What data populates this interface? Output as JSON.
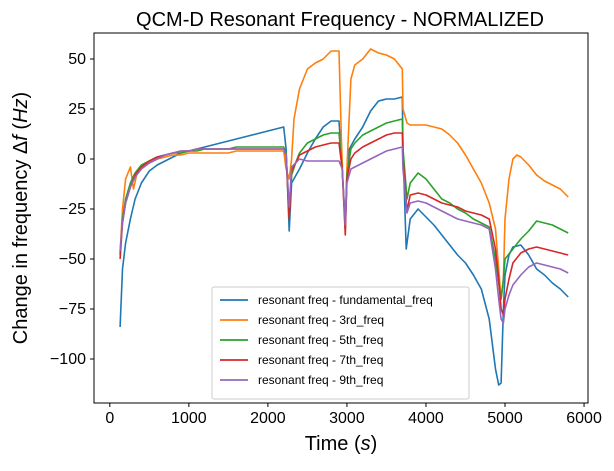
{
  "chart_data": {
    "type": "line",
    "title": "QCM-D Resonant Frequency - NORMALIZED",
    "xlabel_text": "Time (",
    "xlabel_var": "s",
    "xlabel_close": ")",
    "ylabel_text": "Change in frequency Δ",
    "ylabel_var": "f",
    "ylabel_open": " (",
    "ylabel_unit": "Hz",
    "ylabel_close": ")",
    "xlim": [
      -200,
      6050
    ],
    "ylim": [
      -122,
      63
    ],
    "xticks": [
      0,
      1000,
      2000,
      3000,
      4000,
      5000,
      6000
    ],
    "yticks": [
      50,
      25,
      0,
      -25,
      -50,
      -75,
      -100
    ],
    "legend_position": "lower center",
    "series": [
      {
        "name": "resonant freq - fundamental_freq",
        "color": "#1f77b4",
        "x": [
          130,
          160,
          200,
          260,
          320,
          400,
          500,
          600,
          700,
          800,
          900,
          1000,
          1100,
          1200,
          1300,
          1400,
          1500,
          1600,
          1700,
          1800,
          1900,
          2000,
          2100,
          2200,
          2230,
          2270,
          2300,
          2400,
          2500,
          2600,
          2700,
          2800,
          2900,
          2940,
          2980,
          3000,
          3030,
          3100,
          3200,
          3300,
          3400,
          3500,
          3600,
          3700,
          3710,
          3750,
          3800,
          3900,
          4000,
          4100,
          4200,
          4300,
          4400,
          4500,
          4600,
          4700,
          4800,
          4880,
          4920,
          4950,
          4980,
          5000,
          5050,
          5100,
          5200,
          5300,
          5400,
          5500,
          5600,
          5700,
          5800
        ],
        "y": [
          -84,
          -55,
          -42,
          -30,
          -20,
          -12,
          -6,
          -3,
          -1,
          1,
          3,
          4,
          5,
          6,
          7,
          8,
          9,
          10,
          11,
          12,
          13,
          14,
          15,
          16,
          5,
          -36,
          -12,
          -5,
          3,
          10,
          16,
          19,
          19,
          -5,
          -33,
          -8,
          5,
          10,
          16,
          24,
          29,
          30,
          30,
          31,
          5,
          -45,
          -30,
          -25,
          -29,
          -33,
          -38,
          -43,
          -48,
          -52,
          -58,
          -65,
          -80,
          -105,
          -113,
          -112,
          -75,
          -58,
          -48,
          -44,
          -43,
          -48,
          -55,
          -58,
          -62,
          -65,
          -69
        ]
      },
      {
        "name": "resonant freq - 3rd_freq",
        "color": "#ff7f0e",
        "x": [
          130,
          160,
          200,
          260,
          300,
          350,
          400,
          500,
          600,
          700,
          800,
          900,
          1000,
          1100,
          1200,
          1300,
          1400,
          1500,
          1600,
          1700,
          1800,
          1900,
          2000,
          2100,
          2200,
          2230,
          2270,
          2300,
          2330,
          2400,
          2500,
          2600,
          2700,
          2800,
          2900,
          2930,
          2950,
          2980,
          3000,
          3050,
          3100,
          3200,
          3300,
          3400,
          3500,
          3600,
          3700,
          3710,
          3760,
          3800,
          3900,
          4000,
          4100,
          4200,
          4300,
          4400,
          4500,
          4600,
          4700,
          4800,
          4880,
          4920,
          4950,
          4980,
          5000,
          5050,
          5100,
          5150,
          5200,
          5300,
          5400,
          5500,
          5600,
          5700,
          5800
        ],
        "y": [
          -47,
          -25,
          -10,
          -4,
          -15,
          -6,
          -4,
          -2,
          0,
          1,
          2,
          2,
          3,
          3,
          3,
          3,
          3,
          3,
          4,
          4,
          4,
          4,
          4,
          4,
          4,
          -5,
          -10,
          0,
          20,
          35,
          45,
          48,
          50,
          54,
          54,
          10,
          -12,
          -33,
          -5,
          40,
          47,
          50,
          55,
          53,
          52,
          50,
          45,
          25,
          18,
          17,
          17,
          17,
          16,
          15,
          12,
          8,
          2,
          -5,
          -12,
          -22,
          -35,
          -55,
          -70,
          -60,
          -30,
          -10,
          0,
          2,
          1,
          -3,
          -8,
          -11,
          -13,
          -15,
          -19
        ]
      },
      {
        "name": "resonant freq - 5th_freq",
        "color": "#2ca02c",
        "x": [
          130,
          160,
          200,
          260,
          320,
          400,
          500,
          600,
          700,
          800,
          900,
          1000,
          1100,
          1200,
          1300,
          1400,
          1500,
          1600,
          1700,
          1800,
          1900,
          2000,
          2100,
          2200,
          2230,
          2270,
          2300,
          2350,
          2400,
          2500,
          2600,
          2700,
          2800,
          2900,
          2940,
          2980,
          3000,
          3050,
          3100,
          3200,
          3300,
          3400,
          3500,
          3600,
          3700,
          3710,
          3760,
          3800,
          3900,
          4000,
          4100,
          4200,
          4300,
          4400,
          4500,
          4600,
          4700,
          4800,
          4880,
          4920,
          4950,
          4980,
          5000,
          5100,
          5200,
          5300,
          5400,
          5500,
          5600,
          5700,
          5800
        ],
        "y": [
          -48,
          -30,
          -20,
          -12,
          -7,
          -3,
          -1,
          1,
          2,
          3,
          3,
          4,
          4,
          5,
          5,
          5,
          5,
          6,
          6,
          6,
          6,
          6,
          6,
          6,
          3,
          -30,
          -8,
          -2,
          3,
          8,
          10,
          12,
          13,
          13,
          -5,
          -35,
          -8,
          5,
          8,
          12,
          14,
          16,
          18,
          19,
          20,
          5,
          -20,
          -12,
          -7,
          -10,
          -15,
          -20,
          -22,
          -25,
          -27,
          -30,
          -32,
          -34,
          -50,
          -62,
          -70,
          -60,
          -50,
          -45,
          -40,
          -36,
          -31,
          -32,
          -33,
          -35,
          -37
        ]
      },
      {
        "name": "resonant freq - 7th_freq",
        "color": "#d62728",
        "x": [
          130,
          160,
          200,
          260,
          320,
          400,
          500,
          600,
          700,
          800,
          900,
          1000,
          1100,
          1200,
          1300,
          1400,
          1500,
          1600,
          1700,
          1800,
          1900,
          2000,
          2100,
          2200,
          2230,
          2270,
          2300,
          2350,
          2400,
          2500,
          2600,
          2700,
          2800,
          2900,
          2940,
          2980,
          3000,
          3050,
          3100,
          3200,
          3300,
          3400,
          3500,
          3600,
          3700,
          3710,
          3760,
          3800,
          3900,
          4000,
          4100,
          4200,
          4300,
          4400,
          4500,
          4600,
          4700,
          4800,
          4880,
          4920,
          4950,
          4980,
          5000,
          5050,
          5100,
          5200,
          5300,
          5400,
          5500,
          5600,
          5700,
          5800
        ],
        "y": [
          -50,
          -32,
          -22,
          -14,
          -8,
          -4,
          -1,
          1,
          2,
          3,
          4,
          4,
          5,
          5,
          5,
          5,
          5,
          5,
          5,
          5,
          5,
          5,
          5,
          5,
          2,
          -30,
          -6,
          -2,
          2,
          4,
          6,
          7,
          8,
          8,
          -5,
          -38,
          -10,
          0,
          3,
          6,
          8,
          10,
          12,
          13,
          13,
          0,
          -26,
          -18,
          -17,
          -18,
          -20,
          -22,
          -23,
          -24,
          -26,
          -27,
          -28,
          -30,
          -45,
          -60,
          -75,
          -78,
          -70,
          -60,
          -52,
          -47,
          -45,
          -44,
          -45,
          -46,
          -47,
          -48
        ]
      },
      {
        "name": "resonant freq - 9th_freq",
        "color": "#9467bd",
        "x": [
          130,
          160,
          200,
          260,
          320,
          400,
          500,
          600,
          700,
          800,
          900,
          1000,
          1100,
          1200,
          1300,
          1400,
          1500,
          1600,
          1700,
          1800,
          1900,
          2000,
          2100,
          2200,
          2230,
          2270,
          2300,
          2350,
          2400,
          2500,
          2600,
          2700,
          2800,
          2900,
          2940,
          2980,
          3000,
          3050,
          3100,
          3200,
          3300,
          3400,
          3500,
          3600,
          3700,
          3710,
          3760,
          3800,
          3900,
          4000,
          4100,
          4200,
          4300,
          4400,
          4500,
          4600,
          4700,
          4800,
          4880,
          4920,
          4950,
          4980,
          5000,
          5050,
          5100,
          5200,
          5300,
          5400,
          5500,
          5600,
          5700,
          5800
        ],
        "y": [
          -46,
          -32,
          -22,
          -14,
          -9,
          -5,
          -2,
          0,
          2,
          3,
          4,
          4,
          5,
          5,
          5,
          5,
          5,
          5,
          5,
          5,
          5,
          5,
          5,
          5,
          2,
          -24,
          -4,
          -2,
          0,
          -1,
          -1,
          -1,
          -1,
          -1,
          -5,
          -33,
          -12,
          -5,
          -4,
          -2,
          0,
          2,
          4,
          5,
          6,
          -5,
          -27,
          -22,
          -21,
          -22,
          -24,
          -26,
          -28,
          -30,
          -31,
          -32,
          -33,
          -35,
          -55,
          -70,
          -80,
          -82,
          -75,
          -68,
          -63,
          -58,
          -54,
          -52,
          -53,
          -54,
          -55,
          -57
        ]
      }
    ]
  }
}
